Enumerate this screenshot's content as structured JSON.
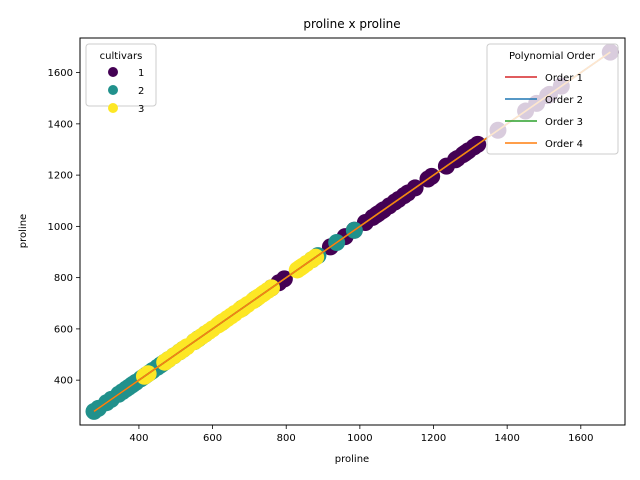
{
  "chart_data": {
    "type": "scatter",
    "title": "proline x proline",
    "xlabel": "proline",
    "ylabel": "proline",
    "xlim": [
      240,
      1720
    ],
    "ylim": [
      225,
      1735
    ],
    "xticks": [
      400,
      600,
      800,
      1000,
      1200,
      1400,
      1600
    ],
    "yticks": [
      400,
      600,
      800,
      1000,
      1200,
      1400,
      1600
    ],
    "grid": false,
    "legends": [
      {
        "title": "cultivars",
        "placement": "top-left",
        "entries": [
          {
            "label": "1",
            "color": "#440154"
          },
          {
            "label": "2",
            "color": "#21918c"
          },
          {
            "label": "3",
            "color": "#fde725"
          }
        ]
      },
      {
        "title": "Polynomial Order",
        "placement": "top-right",
        "entries": [
          {
            "label": "Order 1",
            "color": "#d62728"
          },
          {
            "label": "Order 2",
            "color": "#1f77b4"
          },
          {
            "label": "Order 3",
            "color": "#2ca02c"
          },
          {
            "label": "Order 4",
            "color": "#ff7f0e"
          }
        ]
      }
    ],
    "series": [
      {
        "name": "1",
        "color": "#440154",
        "x": [
          680,
          760,
          780,
          795,
          920,
          960,
          985,
          1015,
          1035,
          1045,
          1050,
          1060,
          1065,
          1080,
          1095,
          1105,
          1120,
          1130,
          1150,
          1185,
          1195,
          1235,
          1260,
          1265,
          1280,
          1285,
          1290,
          1295,
          1310,
          1320,
          1375,
          1450,
          1480,
          1510,
          1515,
          1547,
          1680
        ],
        "y": [
          680,
          760,
          780,
          795,
          920,
          960,
          985,
          1015,
          1035,
          1045,
          1050,
          1060,
          1065,
          1080,
          1095,
          1105,
          1120,
          1130,
          1150,
          1185,
          1195,
          1235,
          1260,
          1265,
          1280,
          1285,
          1290,
          1295,
          1310,
          1320,
          1375,
          1450,
          1480,
          1510,
          1515,
          1547,
          1680
        ]
      },
      {
        "name": "2",
        "color": "#21918c",
        "x": [
          278,
          290,
          312,
          325,
          345,
          355,
          365,
          372,
          380,
          385,
          392,
          405,
          410,
          415,
          420,
          428,
          434,
          438,
          450,
          458,
          463,
          470,
          480,
          495,
          510,
          520,
          550,
          560,
          562,
          580,
          625,
          680,
          714,
          718,
          870,
          886,
          937,
          985
        ],
        "y": [
          278,
          290,
          312,
          325,
          345,
          355,
          365,
          372,
          380,
          385,
          392,
          405,
          410,
          415,
          420,
          428,
          434,
          438,
          450,
          458,
          463,
          470,
          480,
          495,
          510,
          520,
          550,
          560,
          562,
          580,
          625,
          680,
          714,
          718,
          870,
          886,
          937,
          985
        ]
      },
      {
        "name": "3",
        "color": "#fde725",
        "x": [
          415,
          425,
          470,
          480,
          495,
          510,
          520,
          530,
          550,
          555,
          560,
          570,
          580,
          590,
          600,
          615,
          620,
          625,
          630,
          640,
          650,
          660,
          675,
          680,
          685,
          695,
          710,
          720,
          725,
          735,
          740,
          750,
          760,
          830,
          835,
          840,
          845,
          855,
          870,
          880
        ],
        "y": [
          415,
          425,
          470,
          480,
          495,
          510,
          520,
          530,
          550,
          555,
          560,
          570,
          580,
          590,
          600,
          615,
          620,
          625,
          630,
          640,
          650,
          660,
          675,
          680,
          685,
          695,
          710,
          720,
          725,
          735,
          740,
          750,
          760,
          830,
          835,
          840,
          845,
          855,
          870,
          880
        ]
      }
    ],
    "fit_lines": [
      {
        "name": "Order 1",
        "color": "#d62728",
        "x": [
          278,
          1680
        ],
        "y": [
          278,
          1680
        ]
      },
      {
        "name": "Order 2",
        "color": "#1f77b4",
        "x": [
          278,
          1680
        ],
        "y": [
          278,
          1680
        ]
      },
      {
        "name": "Order 3",
        "color": "#2ca02c",
        "x": [
          278,
          1680
        ],
        "y": [
          278,
          1680
        ]
      },
      {
        "name": "Order 4",
        "color": "#ff7f0e",
        "x": [
          278,
          1680
        ],
        "y": [
          278,
          1680
        ]
      }
    ]
  }
}
